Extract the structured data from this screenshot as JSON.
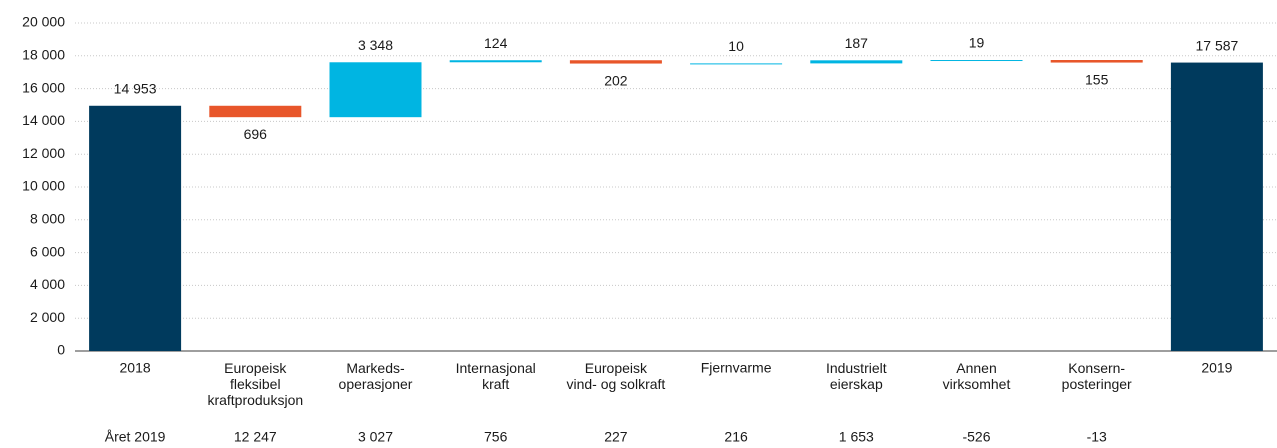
{
  "chart_data": {
    "type": "waterfall",
    "categories": [
      "2018",
      "Europeisk\nfleksibel\nkraftproduksjon",
      "Markeds-\noperasjoner",
      "Internasjonal\nkraft",
      "Europeisk\nvind- og solkraft",
      "Fjernvarme",
      "Industrielt\neierskap",
      "Annen\nvirksomhet",
      "Konsern-\nposteringer",
      "2019"
    ],
    "measure": [
      "total",
      "relative",
      "relative",
      "relative",
      "relative",
      "relative",
      "relative",
      "relative",
      "relative",
      "total"
    ],
    "values": [
      14953,
      -696,
      3348,
      124,
      -202,
      10,
      187,
      19,
      -155,
      17587
    ],
    "value_labels": [
      "14 953",
      "696",
      "3 348",
      "124",
      "202",
      "10",
      "187",
      "19",
      "155",
      "17 587"
    ],
    "colors": {
      "total": "#003a5d",
      "increase": "#00b5e2",
      "decrease": "#e8562a"
    },
    "ylim": [
      0,
      20000
    ],
    "yticks": [
      0,
      {
        "value": 2000,
        "label": "2 000"
      },
      {
        "value": 4000,
        "label": "4 000"
      },
      {
        "value": 6000,
        "label": "6 000"
      },
      {
        "value": 8000,
        "label": "8 000"
      },
      {
        "value": 10000,
        "label": "10 000"
      },
      {
        "value": 12000,
        "label": "12 000"
      },
      {
        "value": 14000,
        "label": "14 000"
      },
      {
        "value": 16000,
        "label": "16 000"
      },
      {
        "value": 18000,
        "label": "18 000"
      },
      {
        "value": 20000,
        "label": "20 000"
      }
    ],
    "grid": true,
    "footer_row": {
      "label": "Året 2019",
      "values": [
        "12 247",
        "3 027",
        "756",
        "227",
        "216",
        "1 653",
        "-526",
        "-13"
      ]
    }
  }
}
